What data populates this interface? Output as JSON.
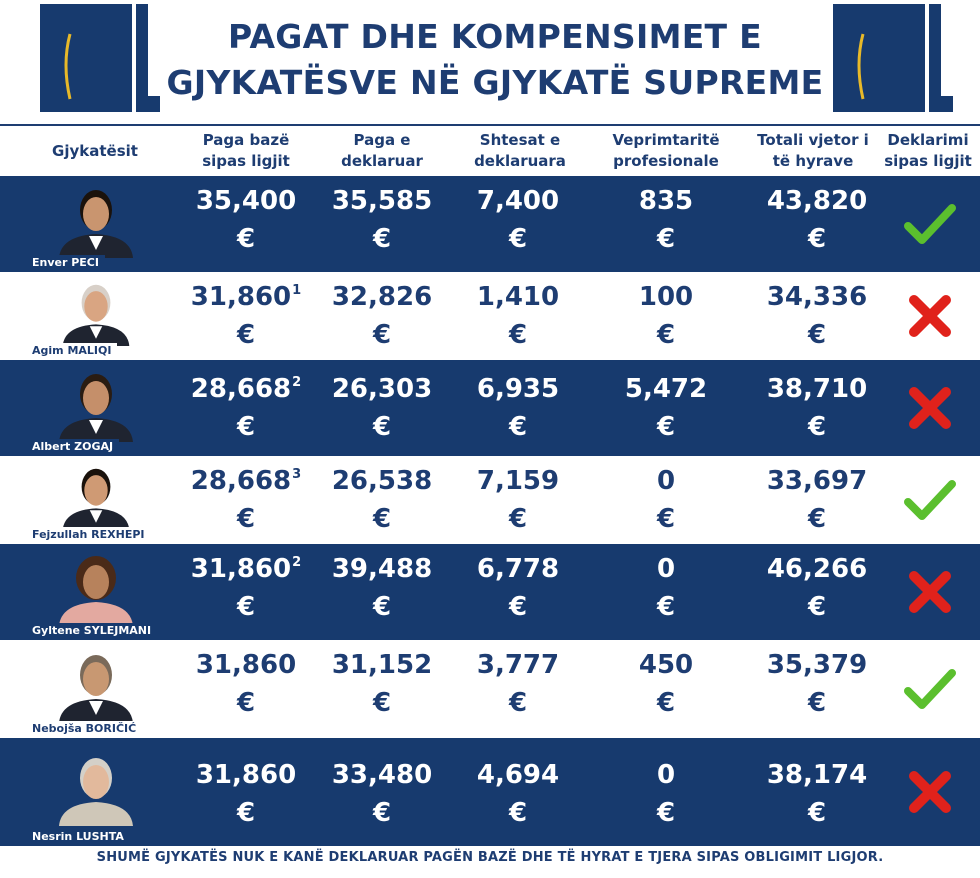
{
  "title": {
    "line1": "PAGAT DHE KOMPENSIMET E",
    "line2": "GJYKATËSVE NË GJYKATË SUPREME"
  },
  "headers": {
    "judges": "Gjykatësit",
    "base_salary": "Paga bazë sipas ligjit",
    "declared_salary": "Paga e deklaruar",
    "allowances": "Shtesat e deklaruara",
    "professional": "Veprimtaritë profesionale",
    "annual_total": "Totali vjetor i të hyrave",
    "declaration": "Deklarimi sipas ligjit"
  },
  "currency": "€",
  "rows": [
    {
      "name": "Enver PECI",
      "base": "35,400",
      "fn": "",
      "declared": "35,585",
      "allowances": "7,400",
      "professional": "835",
      "total": "43,820",
      "compliant": true
    },
    {
      "name": "Agim MALIQI",
      "base": "31,860",
      "fn": "1",
      "declared": "32,826",
      "allowances": "1,410",
      "professional": "100",
      "total": "34,336",
      "compliant": false
    },
    {
      "name": "Albert ZOGAJ",
      "base": "28,668",
      "fn": "2",
      "declared": "26,303",
      "allowances": "6,935",
      "professional": "5,472",
      "total": "38,710",
      "compliant": false
    },
    {
      "name": "Fejzullah REXHEPI",
      "base": "28,668",
      "fn": "3",
      "declared": "26,538",
      "allowances": "7,159",
      "professional": "0",
      "total": "33,697",
      "compliant": true
    },
    {
      "name": "Gyltene SYLEJMANI",
      "base": "31,860",
      "fn": "2",
      "declared": "39,488",
      "allowances": "6,778",
      "professional": "0",
      "total": "46,266",
      "compliant": false
    },
    {
      "name": "Nebojša BORIČIĆ",
      "base": "31,860",
      "fn": "",
      "declared": "31,152",
      "allowances": "3,777",
      "professional": "450",
      "total": "35,379",
      "compliant": true
    },
    {
      "name": "Nesrin LUSHTA",
      "base": "31,860",
      "fn": "",
      "declared": "33,480",
      "allowances": "4,694",
      "professional": "0",
      "total": "38,174",
      "compliant": false
    }
  ],
  "footer": "SHUMË GJYKATËS NUK E KANË DEKLARUAR PAGËN BAZË DHE TË HYRAT E TJERA SIPAS OBLIGIMIT LIGJOR.",
  "colors": {
    "navy": "#173a6e",
    "check": "#5bbf2e",
    "cross": "#e0221b",
    "gold": "#e8b929"
  }
}
